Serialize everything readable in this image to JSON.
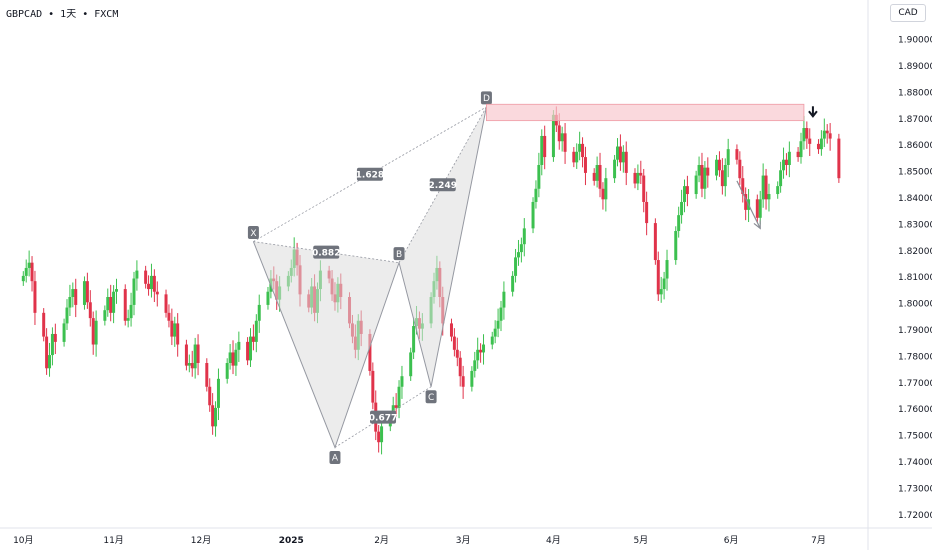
{
  "header": {
    "symbol_line": "GBPCAD • 1天 • FXCM",
    "currency": "CAD"
  },
  "colors": {
    "up": "#26a69a",
    "down": "#ef5350",
    "up_candle": "#3cc04f",
    "down_candle": "#e0334a",
    "pattern_fill": "#dcdcdc",
    "zone_fill": "#f8c9cf",
    "zone_stroke": "#ef9aa4"
  },
  "chart_data": {
    "type": "candlestick",
    "symbol": "GBPCAD",
    "timeframe": "1天",
    "source": "FXCM",
    "ylim": [
      1.715,
      1.915
    ],
    "y_ticks": [
      "1.90000",
      "1.89000",
      "1.88000",
      "1.87000",
      "1.86000",
      "1.85000",
      "1.84000",
      "1.83000",
      "1.82000",
      "1.81000",
      "1.80000",
      "1.79000",
      "1.78000",
      "1.77000",
      "1.76000",
      "1.75000",
      "1.74000",
      "1.73000",
      "1.72000"
    ],
    "x_ticks": [
      "10月",
      "11月",
      "12月",
      "2025",
      "2月",
      "3月",
      "4月",
      "5月",
      "6月",
      "7月"
    ],
    "x_tick_days": [
      0,
      31,
      61,
      92,
      123,
      151,
      182,
      212,
      243,
      273
    ],
    "x_range_days": [
      -8,
      290
    ],
    "candles_close": [
      1.8105,
      1.8135,
      1.8155,
      1.8085,
      1.7965,
      1.7875,
      1.7755,
      1.7805,
      1.7885,
      1.7855,
      1.7925,
      1.7985,
      1.8025,
      1.8055,
      1.7995,
      1.8085,
      1.8005,
      1.7945,
      1.7845,
      1.7935,
      1.7975,
      1.8025,
      1.7965,
      1.8045,
      1.8055,
      1.7935,
      1.7945,
      1.7995,
      1.8095,
      1.8125,
      1.8075,
      1.8055,
      1.8105,
      1.8045,
      1.8035,
      1.7965,
      1.7935,
      1.7875,
      1.7925,
      1.7845,
      1.7765,
      1.7775,
      1.7755,
      1.7845,
      1.7775,
      1.7685,
      1.7615,
      1.7535,
      1.7605,
      1.7715,
      1.7775,
      1.7815,
      1.7765,
      1.7825,
      1.7855,
      1.7785,
      1.7875,
      1.7855,
      1.7935,
      1.7995,
      1.8045,
      1.8095,
      1.8085,
      1.8015,
      1.8065,
      1.8105,
      1.8135,
      1.8205,
      1.8145,
      1.8035,
      1.7985,
      1.8065,
      1.7965,
      1.8055,
      1.8125,
      1.8095,
      1.8035,
      1.8005,
      1.8075,
      1.8025,
      1.7925,
      1.7875,
      1.7825,
      1.7935,
      1.7885,
      1.7745,
      1.7625,
      1.7515,
      1.7475,
      1.7535,
      1.7575,
      1.7615,
      1.7605,
      1.7685,
      1.7725,
      1.7815,
      1.7915,
      1.7945,
      1.7905,
      1.7925,
      1.8025,
      1.8085,
      1.8135,
      1.8025,
      1.7925,
      1.7875,
      1.7825,
      1.7795,
      1.7725,
      1.7685,
      1.7745,
      1.7785,
      1.7825,
      1.7815,
      1.7845,
      1.7875,
      1.7905,
      1.7935,
      1.7985,
      1.8045,
      1.8105,
      1.8175,
      1.8195,
      1.8225,
      1.8285,
      1.8385,
      1.8435,
      1.8525,
      1.8635,
      1.8555,
      1.8715,
      1.8675,
      1.8615,
      1.8645,
      1.8575,
      1.8535,
      1.8575,
      1.8605,
      1.8555,
      1.8495,
      1.8465,
      1.8525,
      1.8435,
      1.8395,
      1.8475,
      1.8545,
      1.8595,
      1.8535,
      1.8575,
      1.8495,
      1.8455,
      1.8495,
      1.8485,
      1.8385,
      1.8305,
      1.8165,
      1.8035,
      1.8055,
      1.8095,
      1.8165,
      1.8275,
      1.8335,
      1.8385,
      1.8445,
      1.8415,
      1.8485,
      1.8525,
      1.8435,
      1.8515,
      1.8485,
      1.8545,
      1.8505,
      1.8445,
      1.8525,
      1.8585,
      1.8545,
      1.8475,
      1.8415,
      1.8355,
      1.8395,
      1.8325,
      1.8395,
      1.8485,
      1.8395,
      1.8415,
      1.8445,
      1.8505,
      1.8545,
      1.8525,
      1.8575,
      1.8555,
      1.8615,
      1.8665,
      1.8625,
      1.8605,
      1.8585,
      1.8625,
      1.8655,
      1.8645,
      1.8625,
      1.8475
    ],
    "pattern": {
      "name": "XABCD",
      "points": [
        {
          "label": "X",
          "day": 79,
          "price": 1.8235
        },
        {
          "label": "A",
          "day": 107,
          "price": 1.7455
        },
        {
          "label": "B",
          "day": 129,
          "price": 1.8155
        },
        {
          "label": "C",
          "day": 140,
          "price": 1.7685
        },
        {
          "label": "D",
          "day": 159,
          "price": 1.8745
        }
      ],
      "ratios": [
        {
          "label": "1.628",
          "from": "X",
          "to": "D"
        },
        {
          "label": "0.882",
          "from": "X",
          "to": "B"
        },
        {
          "label": "2.249",
          "from": "B",
          "to": "D"
        },
        {
          "label": "0.677",
          "from": "A",
          "to": "C"
        }
      ]
    },
    "resistance_zone": {
      "day_start": 159,
      "day_end": 268,
      "price_low": 1.8693,
      "price_high": 1.8755
    },
    "forecast_arrow": {
      "day_start": 245,
      "price_start": 1.8465,
      "day_end": 253,
      "price_end": 1.8285
    }
  }
}
